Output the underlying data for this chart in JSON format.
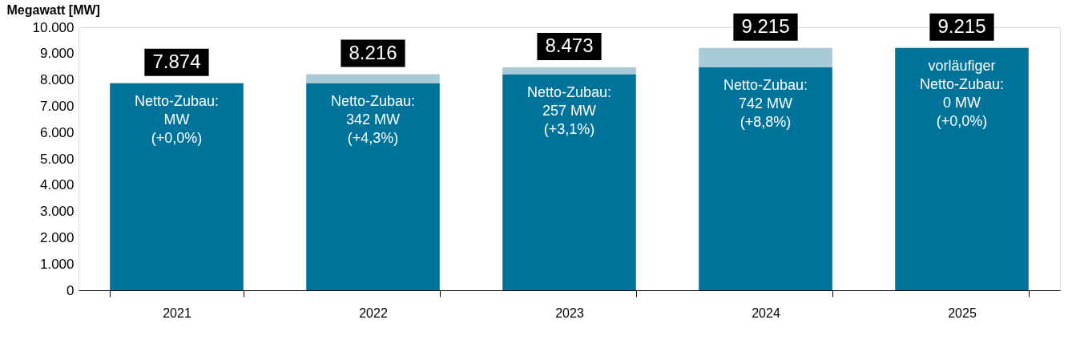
{
  "chart_data": {
    "type": "bar",
    "stacked": true,
    "ylabel": "Megawatt [MW]",
    "categories": [
      "2021",
      "2022",
      "2023",
      "2024",
      "2025"
    ],
    "series": [
      {
        "color": "#00739a",
        "values": [
          7874,
          7874,
          8216,
          8473,
          9215
        ]
      },
      {
        "color": "#a8cad8",
        "values": [
          0,
          342,
          257,
          742,
          0
        ]
      }
    ],
    "totals": [
      "7.874",
      "8.216",
      "8.473",
      "9.215",
      "9.215"
    ],
    "ylim": [
      0,
      10000
    ],
    "yticks": [
      {
        "value": 0,
        "label": "0"
      },
      {
        "value": 1000,
        "label": "1.000"
      },
      {
        "value": 2000,
        "label": "2.000"
      },
      {
        "value": 3000,
        "label": "3.000"
      },
      {
        "value": 4000,
        "label": "4.000"
      },
      {
        "value": 5000,
        "label": "5.000"
      },
      {
        "value": 6000,
        "label": "6.000"
      },
      {
        "value": 7000,
        "label": "7.000"
      },
      {
        "value": 8000,
        "label": "8.000"
      },
      {
        "value": 9000,
        "label": "9.000"
      },
      {
        "value": 10000,
        "label": "10.000"
      }
    ],
    "annotations": [
      "Netto-Zubau:\nMW\n(+0,0%)",
      "Netto-Zubau:\n342 MW\n(+4,3%)",
      "Netto-Zubau:\n257 MW\n(+3,1%)",
      "Netto-Zubau:\n742 MW\n(+8,8%)",
      "vorläufiger\nNetto-Zubau:\n0 MW\n(+0,0%)"
    ],
    "grid": false
  }
}
